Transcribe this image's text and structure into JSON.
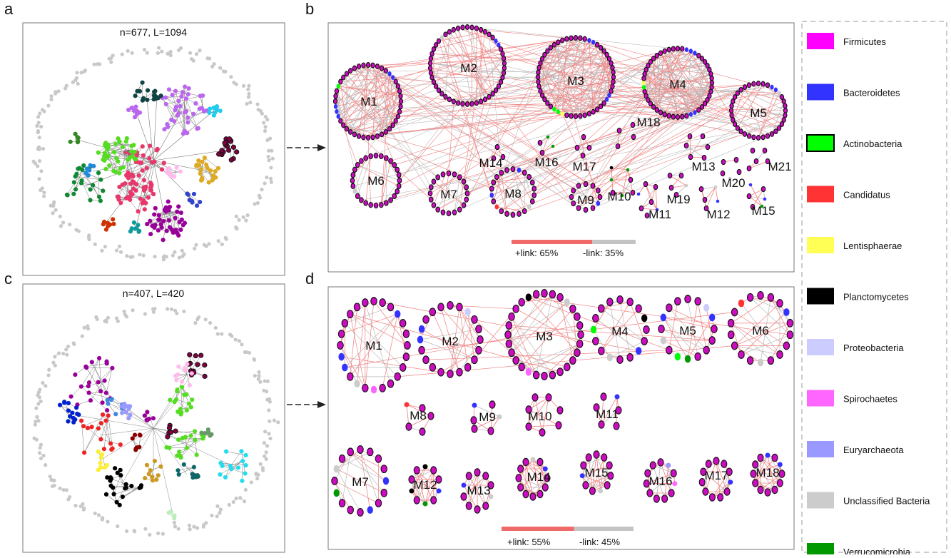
{
  "panels": {
    "a": {
      "label": "a",
      "title": "n=677, L=1094"
    },
    "b": {
      "label": "b",
      "link_bar": {
        "pos_label": "+link: 65%",
        "neg_label": "-link: 35%",
        "pos_frac": 0.65
      }
    },
    "c": {
      "label": "c",
      "title": "n=407, L=420"
    },
    "d": {
      "label": "d",
      "link_bar": {
        "pos_label": "+link: 55%",
        "neg_label": "-link: 45%",
        "pos_frac": 0.55
      }
    }
  },
  "colors": {
    "module_node": "#cc0cc0",
    "positive_link": "#f08080",
    "negative_link": "#bbbbbb",
    "link_bar_pos": "#f06a6a",
    "link_bar_neg": "#c4c4c4"
  },
  "legend": [
    {
      "label": "Firmicutes",
      "color": "#ff00ff"
    },
    {
      "label": "Bacteroidetes",
      "color": "#3333ff"
    },
    {
      "label": "Actinobacteria",
      "color": "#00ff00"
    },
    {
      "label": "Candidatus",
      "color": "#ff3333"
    },
    {
      "label": "Lentisphaerae",
      "color": "#ffff55"
    },
    {
      "label": "Planctomycetes",
      "color": "#000000"
    },
    {
      "label": "Proteobacteria",
      "color": "#ccccff"
    },
    {
      "label": "Spirochaetes",
      "color": "#ff66ff"
    },
    {
      "label": "Euryarchaeota",
      "color": "#9999ff"
    },
    {
      "label": "Unclassified Bacteria",
      "color": "#cccccc"
    },
    {
      "label": "Verrucomicrobia",
      "color": "#009900"
    }
  ],
  "modules_b": [
    "M1",
    "M2",
    "M3",
    "M4",
    "M5",
    "M6",
    "M7",
    "M8",
    "M9",
    "M10",
    "M11",
    "M12",
    "M13",
    "M14",
    "M15",
    "M16",
    "M17",
    "M18",
    "M19",
    "M20",
    "M21"
  ],
  "modules_d": [
    "M1",
    "M2",
    "M3",
    "M4",
    "M5",
    "M6",
    "M7",
    "M8",
    "M9",
    "M10",
    "M11",
    "M12",
    "M13",
    "M14",
    "M15",
    "M16",
    "M17",
    "M18"
  ]
}
